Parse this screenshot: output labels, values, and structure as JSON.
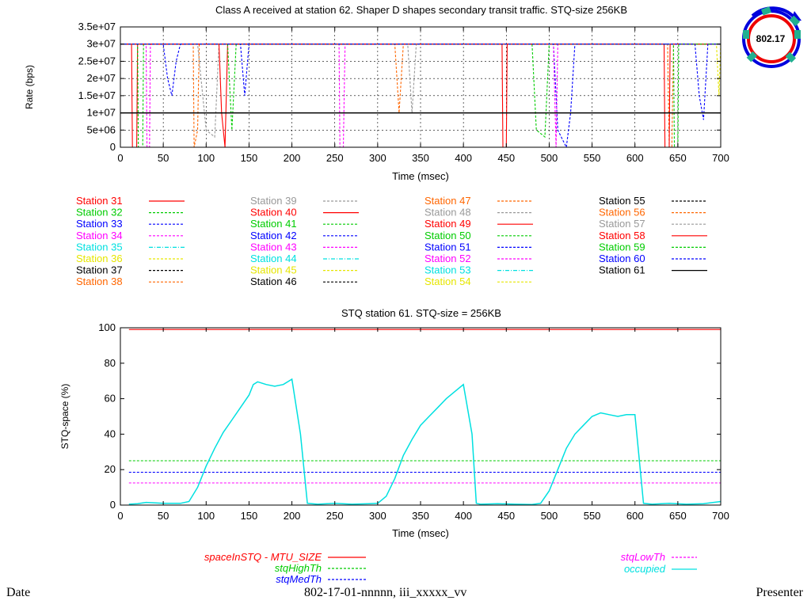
{
  "logo": {
    "text": "802.17"
  },
  "footer": {
    "left": "Date",
    "center": "802-17-01-nnnnn, iii_xxxxx_vv",
    "right": "Presenter"
  },
  "chart_data": [
    {
      "type": "line",
      "title": "Class A received at station 62. Shaper D shapes secondary transit traffic. STQ-size 256KB",
      "xlabel": "Time (msec)",
      "ylabel": "Rate (bps)",
      "xlim": [
        0,
        700
      ],
      "ylim": [
        0,
        35000000
      ],
      "xticks": [
        "0",
        "50",
        "100",
        "150",
        "200",
        "250",
        "300",
        "350",
        "400",
        "450",
        "500",
        "550",
        "600",
        "650",
        "700"
      ],
      "yticks": [
        "0",
        "5e+06",
        "1e+07",
        "1.5e+07",
        "2e+07",
        "2.5e+07",
        "3e+07",
        "3.5e+07"
      ],
      "grid": true,
      "legend_position": "below",
      "series": [
        {
          "name": "Station 31",
          "color": "#ff0000",
          "dash": "solid",
          "x": [
            0,
            13,
            14,
            19,
            20,
            700
          ],
          "y": [
            30000000,
            30000000,
            0,
            0,
            30000000,
            30000000
          ]
        },
        {
          "name": "Station 32",
          "color": "#00cc00",
          "dash": "dashed",
          "x": [
            0,
            20,
            21,
            26,
            27,
            700
          ],
          "y": [
            30000000,
            30000000,
            0,
            0,
            30000000,
            30000000
          ]
        },
        {
          "name": "Station 33",
          "color": "#0000ff",
          "dash": "dashed",
          "x": [
            0,
            50,
            55,
            60,
            65,
            70,
            700
          ],
          "y": [
            30000000,
            30000000,
            20000000,
            15000000,
            25000000,
            30000000,
            30000000
          ]
        },
        {
          "name": "Station 34",
          "color": "#ff00ff",
          "dash": "dashed",
          "x": [
            0,
            30,
            31,
            34,
            35,
            700
          ],
          "y": [
            30000000,
            30000000,
            0,
            0,
            30000000,
            30000000
          ]
        },
        {
          "name": "Station 35",
          "color": "#00e0e0",
          "dash": "dashdot",
          "x": [
            0,
            700
          ],
          "y": [
            30000000,
            30000000
          ]
        },
        {
          "name": "Station 36",
          "color": "#e6e600",
          "dash": "dashed",
          "x": [
            0,
            700
          ],
          "y": [
            30000000,
            30000000
          ]
        },
        {
          "name": "Station 37",
          "color": "#000000",
          "dash": "dashed",
          "x": [
            0,
            700
          ],
          "y": [
            30000000,
            30000000
          ]
        },
        {
          "name": "Station 38",
          "color": "#ff6600",
          "dash": "dashed",
          "x": [
            0,
            85,
            86,
            90,
            92,
            700
          ],
          "y": [
            30000000,
            30000000,
            0,
            5000000,
            30000000,
            30000000
          ]
        },
        {
          "name": "Station 39",
          "color": "#999999",
          "dash": "dashed",
          "x": [
            0,
            90,
            100,
            110,
            115,
            700
          ],
          "y": [
            30000000,
            30000000,
            5000000,
            3000000,
            30000000,
            30000000
          ]
        },
        {
          "name": "Station 40",
          "color": "#ff0000",
          "dash": "solid",
          "x": [
            0,
            115,
            118,
            122,
            125,
            700
          ],
          "y": [
            30000000,
            30000000,
            10000000,
            0,
            30000000,
            30000000
          ]
        },
        {
          "name": "Station 41",
          "color": "#00cc00",
          "dash": "dashed",
          "x": [
            0,
            125,
            130,
            135,
            700
          ],
          "y": [
            30000000,
            30000000,
            5000000,
            30000000,
            30000000
          ]
        },
        {
          "name": "Station 42",
          "color": "#0000ff",
          "dash": "dashed",
          "x": [
            0,
            140,
            145,
            150,
            700
          ],
          "y": [
            30000000,
            30000000,
            15000000,
            30000000,
            30000000
          ]
        },
        {
          "name": "Station 43",
          "color": "#ff00ff",
          "dash": "dashed",
          "x": [
            0,
            255,
            256,
            260,
            262,
            700
          ],
          "y": [
            30000000,
            30000000,
            0,
            0,
            30000000,
            30000000
          ]
        },
        {
          "name": "Station 44",
          "color": "#00e0e0",
          "dash": "dashdot",
          "x": [
            0,
            700
          ],
          "y": [
            30000000,
            30000000
          ]
        },
        {
          "name": "Station 45",
          "color": "#e6e600",
          "dash": "dashed",
          "x": [
            0,
            695,
            698,
            700
          ],
          "y": [
            30000000,
            30000000,
            15000000,
            30000000
          ]
        },
        {
          "name": "Station 46",
          "color": "#000000",
          "dash": "dashed",
          "x": [
            0,
            700
          ],
          "y": [
            30000000,
            30000000
          ]
        },
        {
          "name": "Station 47",
          "color": "#ff6600",
          "dash": "dashed",
          "x": [
            0,
            320,
            325,
            330,
            700
          ],
          "y": [
            30000000,
            30000000,
            10000000,
            30000000,
            30000000
          ]
        },
        {
          "name": "Station 48",
          "color": "#999999",
          "dash": "dashed",
          "x": [
            0,
            335,
            340,
            345,
            700
          ],
          "y": [
            30000000,
            30000000,
            10000000,
            30000000,
            30000000
          ]
        },
        {
          "name": "Station 49",
          "color": "#ff0000",
          "dash": "solid",
          "x": [
            0,
            445,
            446,
            450,
            451,
            700
          ],
          "y": [
            30000000,
            30000000,
            0,
            0,
            30000000,
            30000000
          ]
        },
        {
          "name": "Station 50",
          "color": "#00cc00",
          "dash": "dashed",
          "x": [
            0,
            480,
            485,
            495,
            500,
            700
          ],
          "y": [
            30000000,
            30000000,
            5000000,
            3000000,
            30000000,
            30000000
          ]
        },
        {
          "name": "Station 51",
          "color": "#0000ff",
          "dash": "dashed",
          "x": [
            0,
            505,
            510,
            520,
            525,
            530,
            700
          ],
          "y": [
            30000000,
            30000000,
            5000000,
            0,
            10000000,
            30000000,
            30000000
          ]
        },
        {
          "name": "Station 52",
          "color": "#ff00ff",
          "dash": "dashed",
          "x": [
            0,
            505,
            508,
            510,
            700
          ],
          "y": [
            30000000,
            30000000,
            0,
            30000000,
            30000000
          ]
        },
        {
          "name": "Station 53",
          "color": "#00e0e0",
          "dash": "dashdot",
          "x": [
            0,
            700
          ],
          "y": [
            30000000,
            30000000
          ]
        },
        {
          "name": "Station 54",
          "color": "#e6e600",
          "dash": "dashed",
          "x": [
            0,
            700
          ],
          "y": [
            30000000,
            30000000
          ]
        },
        {
          "name": "Station 55",
          "color": "#000000",
          "dash": "dashed",
          "x": [
            0,
            700
          ],
          "y": [
            30000000,
            30000000
          ]
        },
        {
          "name": "Station 56",
          "color": "#ff6600",
          "dash": "dashed",
          "x": [
            0,
            638,
            640,
            643,
            645,
            700
          ],
          "y": [
            30000000,
            30000000,
            0,
            0,
            30000000,
            30000000
          ]
        },
        {
          "name": "Station 57",
          "color": "#999999",
          "dash": "dashed",
          "x": [
            0,
            700
          ],
          "y": [
            30000000,
            30000000
          ]
        },
        {
          "name": "Station 58",
          "color": "#ff0000",
          "dash": "solid",
          "x": [
            0,
            634,
            635,
            640,
            641,
            700
          ],
          "y": [
            30000000,
            30000000,
            0,
            0,
            30000000,
            30000000
          ]
        },
        {
          "name": "Station 59",
          "color": "#00cc00",
          "dash": "dashed",
          "x": [
            0,
            645,
            646,
            650,
            651,
            700
          ],
          "y": [
            30000000,
            30000000,
            0,
            0,
            30000000,
            30000000
          ]
        },
        {
          "name": "Station 60",
          "color": "#0000ff",
          "dash": "dashed",
          "x": [
            0,
            670,
            675,
            680,
            685,
            700
          ],
          "y": [
            30000000,
            30000000,
            15000000,
            8000000,
            30000000,
            30000000
          ]
        },
        {
          "name": "Station 61",
          "color": "#000000",
          "dash": "solid",
          "x": [
            0,
            100,
            200,
            300,
            400,
            500,
            600,
            700
          ],
          "y": [
            10000000,
            10000000,
            10000000,
            10000000,
            10000000,
            10000000,
            10000000,
            10000000
          ]
        }
      ]
    },
    {
      "type": "line",
      "title": "STQ station 61. STQ-size = 256KB",
      "xlabel": "Time (msec)",
      "ylabel": "STQ-space (%)",
      "xlim": [
        0,
        700
      ],
      "ylim": [
        0,
        100
      ],
      "xticks": [
        "0",
        "50",
        "100",
        "150",
        "200",
        "250",
        "300",
        "350",
        "400",
        "450",
        "500",
        "550",
        "600",
        "650",
        "700"
      ],
      "yticks": [
        "0",
        "20",
        "40",
        "60",
        "80",
        "100"
      ],
      "grid": false,
      "legend_position": "below",
      "series": [
        {
          "name": "spaceInSTQ - MTU_SIZE",
          "color": "#ff0000",
          "dash": "solid",
          "x": [
            10,
            700
          ],
          "y": [
            99,
            99
          ]
        },
        {
          "name": "stqHighTh",
          "color": "#00cc00",
          "dash": "dashed",
          "x": [
            10,
            700
          ],
          "y": [
            25,
            25
          ]
        },
        {
          "name": "stqMedTh",
          "color": "#0000ff",
          "dash": "dashed",
          "x": [
            10,
            700
          ],
          "y": [
            18.5,
            18.5
          ]
        },
        {
          "name": "stqLowTh",
          "color": "#ff00ff",
          "dash": "dashed",
          "x": [
            10,
            700
          ],
          "y": [
            12.5,
            12.5
          ]
        },
        {
          "name": "occupied",
          "color": "#00e0e0",
          "dash": "solid",
          "x": [
            10,
            20,
            30,
            50,
            70,
            80,
            90,
            100,
            110,
            120,
            130,
            140,
            150,
            155,
            160,
            170,
            180,
            190,
            200,
            210,
            218,
            230,
            250,
            270,
            290,
            300,
            310,
            320,
            330,
            340,
            350,
            360,
            370,
            380,
            390,
            400,
            410,
            415,
            420,
            440,
            460,
            480,
            490,
            500,
            510,
            520,
            530,
            540,
            550,
            560,
            570,
            580,
            590,
            600,
            610,
            620,
            640,
            660,
            680,
            700
          ],
          "y": [
            0.5,
            0.8,
            1.5,
            1,
            1,
            2,
            10,
            22,
            32,
            41,
            48,
            55,
            62,
            68,
            69.5,
            68,
            67,
            68,
            71,
            40,
            1,
            0.5,
            1,
            0.5,
            0.8,
            1,
            5,
            15,
            28,
            37,
            45,
            50,
            55,
            60,
            64,
            68,
            40,
            1,
            0.5,
            0.8,
            0.5,
            0.3,
            1,
            8,
            20,
            32,
            40,
            45,
            50,
            52,
            51,
            50,
            51,
            51,
            1,
            0.5,
            1,
            0.5,
            0.8,
            2
          ]
        }
      ]
    }
  ]
}
